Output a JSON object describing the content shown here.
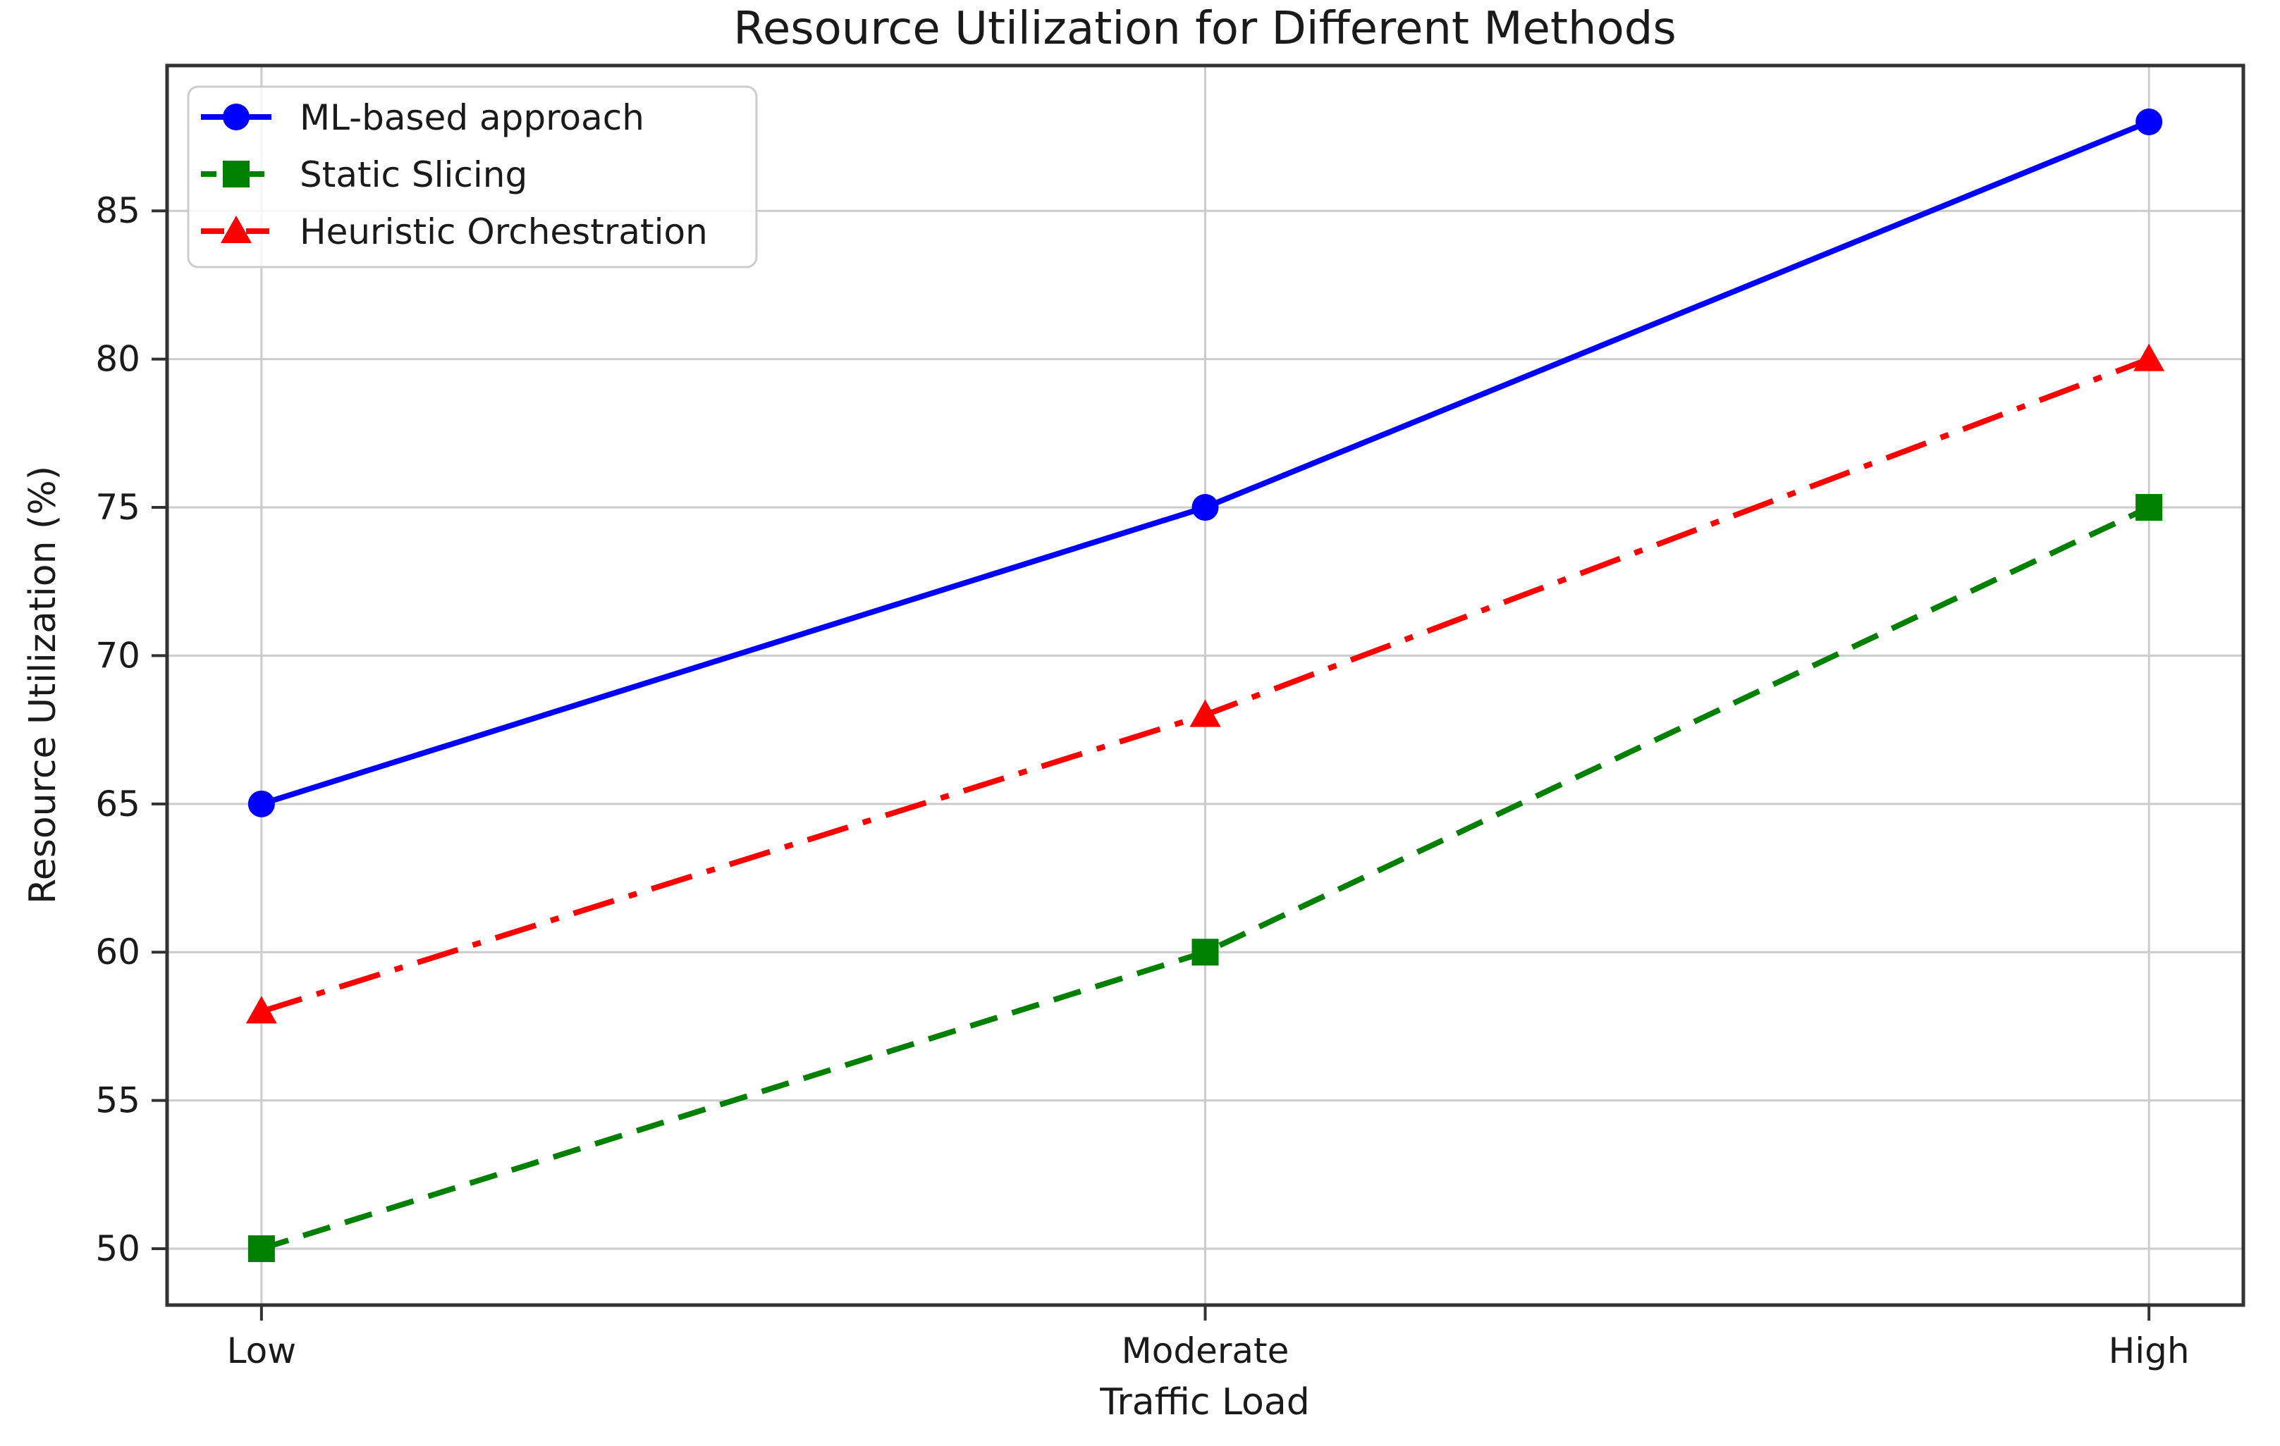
{
  "chart_data": {
    "type": "line",
    "title": "Resource Utilization for Different Methods",
    "xlabel": "Traffic Load",
    "ylabel": "Resource Utilization (%)",
    "categories": [
      "Low",
      "Moderate",
      "High"
    ],
    "series": [
      {
        "name": "ML-based approach",
        "values": [
          65,
          75,
          88
        ],
        "color": "#0000ff",
        "linestyle": "solid",
        "marker": "circle"
      },
      {
        "name": "Static Slicing",
        "values": [
          50,
          60,
          75
        ],
        "color": "#008000",
        "linestyle": "dashed",
        "marker": "square"
      },
      {
        "name": "Heuristic Orchestration",
        "values": [
          58,
          68,
          80
        ],
        "color": "#ff0000",
        "linestyle": "dashdot",
        "marker": "triangle"
      }
    ],
    "yticks": [
      50,
      55,
      60,
      65,
      70,
      75,
      80,
      85
    ],
    "ylim": [
      48.1,
      89.9
    ],
    "xlim_pad": 0.1,
    "grid": true,
    "legend_position": "upper left",
    "colors": {
      "grid": "#cccccc",
      "spine": "#333333",
      "text": "#1a1a1a",
      "legend_border": "#cccccc",
      "background": "#ffffff"
    }
  }
}
